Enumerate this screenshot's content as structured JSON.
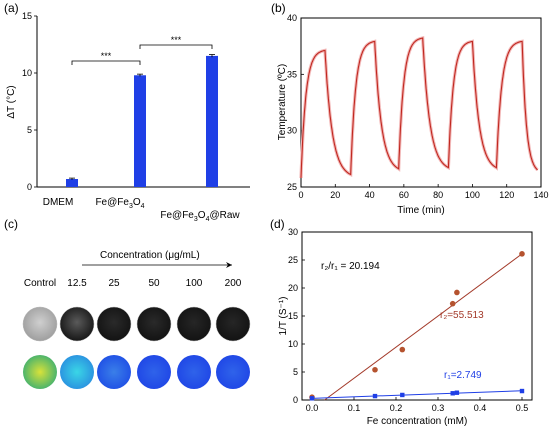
{
  "panels": {
    "a": "(a)",
    "b": "(b)",
    "c": "(c)",
    "d": "(d)"
  },
  "colors": {
    "bar": "#1f3fe6",
    "curve": "#c0271f",
    "brown_fit": "#a33a2a",
    "blue_fit": "#1f3fe6",
    "brown_point": "#b5532f"
  },
  "significance": [
    "***",
    "***"
  ],
  "chart_data": [
    {
      "type": "bar",
      "panel": "a",
      "categories": [
        "DMEM",
        "Fe@Fe",
        "Fe@Fe"
      ],
      "category_labels": [
        {
          "main": "DMEM"
        },
        {
          "main": "Fe@Fe",
          "sub": "3",
          "tail": "O",
          "sub2": "4"
        },
        {
          "main": "Fe@Fe",
          "sub": "3",
          "tail": "O",
          "sub2": "4",
          "tail2": "@Raw"
        }
      ],
      "values": [
        0.7,
        9.8,
        11.5
      ],
      "errors": [
        0.08,
        0.1,
        0.12
      ],
      "ylabel": "ΔT (°C)",
      "ylim": [
        0,
        15
      ],
      "yticks": [
        0,
        5,
        10,
        15
      ]
    },
    {
      "type": "line",
      "panel": "b",
      "xlabel": "Time (min)",
      "ylabel": "Temperature (ºC)",
      "xlim": [
        0,
        140
      ],
      "ylim": [
        25,
        40
      ],
      "xticks": [
        0,
        20,
        40,
        60,
        80,
        100,
        120,
        140
      ],
      "yticks": [
        25,
        30,
        35,
        40
      ],
      "cycles": [
        {
          "on_start": 0,
          "on_end": 14,
          "off_end": 29,
          "peak": 37.2,
          "base": 25.8
        },
        {
          "on_start": 29,
          "on_end": 43,
          "off_end": 57,
          "peak": 38.0,
          "base": 26.3
        },
        {
          "on_start": 57,
          "on_end": 71,
          "off_end": 86,
          "peak": 38.3,
          "base": 26.4
        },
        {
          "on_start": 86,
          "on_end": 100,
          "off_end": 114,
          "peak": 38.0,
          "base": 26.4
        },
        {
          "on_start": 114,
          "on_end": 129,
          "off_end": 138,
          "peak": 38.0,
          "base": 26.2
        }
      ],
      "start_temp": 25.8
    },
    {
      "type": "table",
      "panel": "c",
      "axis_label": "Concentration (μg/mL)",
      "columns": [
        "Control",
        "12.5",
        "25",
        "50",
        "100",
        "200"
      ],
      "row1_gray": [
        "#cfcfcf",
        "#5a5a5a",
        "#2a2a2a",
        "#2a2a2a",
        "#262626",
        "#262626"
      ],
      "row2_thermal": [
        {
          "inner": "#d8e23a",
          "outer": "#3fb070"
        },
        {
          "inner": "#3ad6e6",
          "outer": "#2a8fe0"
        },
        {
          "inner": "#3a7fe8",
          "outer": "#1f4fe6"
        },
        {
          "inner": "#2f63ea",
          "outer": "#1f46e6"
        },
        {
          "inner": "#2f63ea",
          "outer": "#1f46e6"
        },
        {
          "inner": "#2f63ea",
          "outer": "#1f46e6"
        }
      ]
    },
    {
      "type": "scatter",
      "panel": "d",
      "xlabel": "Fe concentration (mM)",
      "ylabel": "1/T (S⁻¹)",
      "xlim": [
        0,
        0.5
      ],
      "ylim": [
        0,
        30
      ],
      "xticks": [
        0.0,
        0.1,
        0.2,
        0.3,
        0.4,
        0.5
      ],
      "yticks": [
        0,
        5,
        10,
        15,
        20,
        25,
        30
      ],
      "series": [
        {
          "name": "r₂=55.513",
          "x": [
            0.0,
            0.15,
            0.215,
            0.335,
            0.345,
            0.5
          ],
          "y": [
            0.5,
            5.4,
            9.0,
            17.2,
            19.2,
            26.1
          ],
          "fit": [
            [
              0.03,
              0.0
            ],
            [
              0.5,
              26.1
            ]
          ]
        },
        {
          "name": "r₁=2.749",
          "x": [
            0.0,
            0.15,
            0.215,
            0.335,
            0.345,
            0.5
          ],
          "y": [
            0.3,
            0.7,
            0.9,
            1.2,
            1.3,
            1.6
          ],
          "fit": [
            [
              0.0,
              0.3
            ],
            [
              0.5,
              1.65
            ]
          ]
        }
      ],
      "ratio_label": "r₂/r₁ = 20.194"
    }
  ]
}
